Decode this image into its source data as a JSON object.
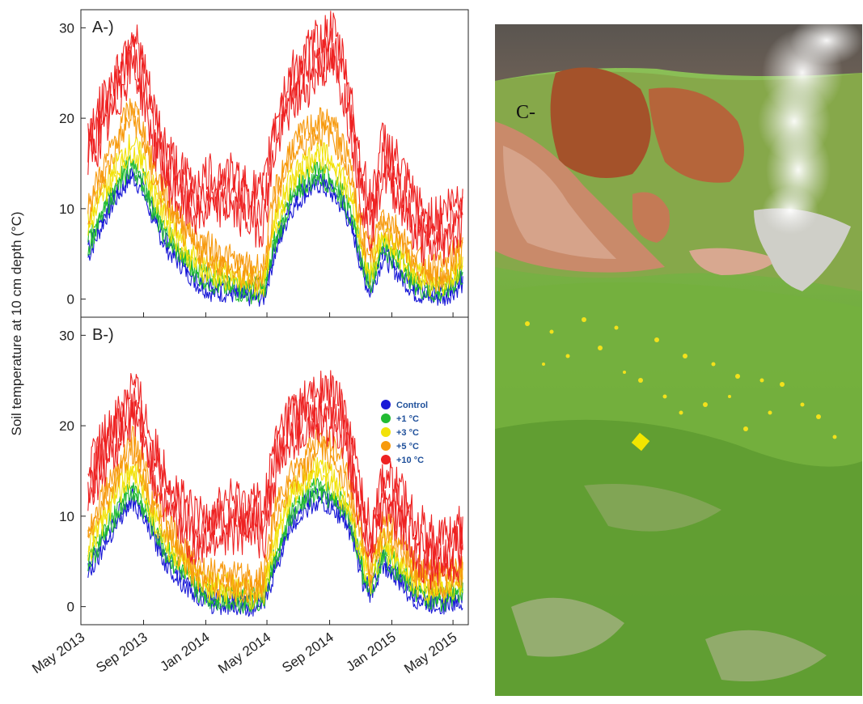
{
  "panels": {
    "ylabel": "Soil temperature at 10 cm depth (°C)",
    "photo_label": "C-"
  },
  "chart_data": [
    {
      "type": "line",
      "panel_label": "A-)",
      "xlabel": "",
      "ylabel": "Soil temperature at 10 cm depth (°C)",
      "x_ticks": [
        "May 2013",
        "Sep 2013",
        "Jan 2014",
        "May 2014",
        "Sep 2014",
        "Jan 2015",
        "May 2015"
      ],
      "y_ticks": [
        0,
        10,
        20,
        30
      ],
      "xlim": [
        "2013-05-01",
        "2015-05-31"
      ],
      "ylim": [
        -2,
        32
      ],
      "grid": false,
      "x": [
        "2013-05-15",
        "2013-06-15",
        "2013-07-15",
        "2013-08-10",
        "2013-09-01",
        "2013-09-20",
        "2013-10-15",
        "2013-11-15",
        "2013-12-15",
        "2014-01-15",
        "2014-02-15",
        "2014-03-15",
        "2014-04-10",
        "2014-04-25",
        "2014-05-15",
        "2014-06-15",
        "2014-07-15",
        "2014-08-10",
        "2014-09-05",
        "2014-10-01",
        "2014-10-20",
        "2014-11-05",
        "2014-11-20",
        "2014-12-15",
        "2015-01-15",
        "2015-02-15",
        "2015-03-15",
        "2015-04-15",
        "2015-05-20"
      ],
      "series": [
        {
          "name": "Control",
          "color": "#1a1ad6",
          "values": [
            5,
            9,
            12,
            14,
            12,
            9,
            6,
            4,
            2,
            1,
            1,
            0.5,
            0.5,
            0.5,
            5,
            10,
            12,
            13,
            12,
            10,
            7,
            3,
            1,
            5,
            3,
            1,
            0.5,
            0.5,
            2
          ]
        },
        {
          "name": "+1 °C",
          "color": "#22bb33",
          "values": [
            6,
            10,
            13,
            15,
            13,
            10,
            7,
            5,
            3,
            2,
            1.5,
            1,
            1,
            1,
            6,
            11,
            13,
            14,
            13,
            11,
            8,
            4,
            2,
            6,
            4,
            2,
            1,
            1,
            3
          ]
        },
        {
          "name": "+3 °C",
          "color": "#f2e20a",
          "values": [
            8,
            12,
            15,
            17,
            15,
            12,
            9,
            6,
            4,
            3,
            2.5,
            2,
            2,
            2,
            8,
            13,
            15,
            16,
            15,
            13,
            10,
            5,
            3,
            7,
            5,
            3,
            2,
            2,
            4
          ]
        },
        {
          "name": "+5 °C",
          "color": "#f79a0e",
          "values": [
            10,
            14,
            18,
            21,
            18,
            14,
            11,
            8,
            6,
            5,
            4,
            3,
            3,
            3,
            11,
            16,
            18,
            19,
            19,
            16,
            12,
            7,
            5,
            9,
            7,
            4,
            3,
            3,
            6
          ]
        },
        {
          "name": "+10 °C",
          "color": "#ee2222",
          "values": [
            17,
            20,
            24,
            28,
            24,
            19,
            15,
            12,
            11,
            12,
            12,
            11,
            10,
            10,
            18,
            23,
            25,
            27,
            28,
            24,
            18,
            12,
            9,
            16,
            13,
            9,
            7,
            8,
            10
          ]
        }
      ]
    },
    {
      "type": "line",
      "panel_label": "B-)",
      "xlabel": "",
      "ylabel": "Soil temperature at 10 cm depth (°C)",
      "x_ticks": [
        "May 2013",
        "Sep 2013",
        "Jan 2014",
        "May 2014",
        "Sep 2014",
        "Jan 2015",
        "May 2015"
      ],
      "y_ticks": [
        0,
        10,
        20,
        30
      ],
      "xlim": [
        "2013-05-01",
        "2015-05-31"
      ],
      "ylim": [
        -2,
        32
      ],
      "grid": false,
      "legend_position": "right",
      "x": [
        "2013-05-15",
        "2013-06-15",
        "2013-07-15",
        "2013-08-10",
        "2013-09-01",
        "2013-09-20",
        "2013-10-15",
        "2013-11-15",
        "2013-12-15",
        "2014-01-15",
        "2014-02-15",
        "2014-03-15",
        "2014-04-10",
        "2014-04-25",
        "2014-05-15",
        "2014-06-15",
        "2014-07-15",
        "2014-08-10",
        "2014-09-05",
        "2014-10-01",
        "2014-10-20",
        "2014-11-05",
        "2014-11-20",
        "2014-12-15",
        "2015-01-15",
        "2015-02-15",
        "2015-03-15",
        "2015-04-15",
        "2015-05-20"
      ],
      "series": [
        {
          "name": "Control",
          "color": "#1a1ad6",
          "values": [
            4,
            7,
            10,
            12,
            10,
            8,
            5,
            3,
            1.5,
            0.5,
            0.5,
            0.3,
            0.3,
            0.5,
            4,
            9,
            11,
            12,
            11,
            10,
            7,
            3,
            1.5,
            5,
            3,
            1,
            0.5,
            0.5,
            1
          ]
        },
        {
          "name": "+1 °C",
          "color": "#22bb33",
          "values": [
            5,
            8,
            11,
            13,
            11,
            9,
            6,
            4,
            2,
            1,
            1,
            0.8,
            0.8,
            1,
            5,
            10,
            12,
            13,
            12,
            11,
            8,
            4,
            2,
            6,
            4,
            2,
            1,
            1,
            2
          ]
        },
        {
          "name": "+3 °C",
          "color": "#f2e20a",
          "values": [
            6,
            10,
            13,
            15,
            13,
            10,
            7,
            5,
            3,
            2,
            2,
            1.5,
            1.5,
            2,
            7,
            12,
            14,
            15,
            14,
            12,
            9,
            5,
            3,
            7,
            5,
            3,
            2,
            2,
            3
          ]
        },
        {
          "name": "+5 °C",
          "color": "#f79a0e",
          "values": [
            8,
            12,
            15,
            18,
            15,
            12,
            9,
            6,
            4,
            3,
            3,
            2.5,
            2.5,
            3,
            10,
            14,
            16,
            18,
            17,
            15,
            11,
            7,
            4,
            9,
            7,
            4,
            3,
            3,
            4
          ]
        },
        {
          "name": "+10 °C",
          "color": "#ee2222",
          "values": [
            13,
            17,
            20,
            23,
            20,
            16,
            13,
            10,
            8,
            9,
            10,
            10,
            10,
            9,
            16,
            20,
            21,
            22,
            22,
            20,
            15,
            10,
            7,
            13,
            11,
            8,
            6,
            6,
            7
          ]
        }
      ]
    }
  ]
}
